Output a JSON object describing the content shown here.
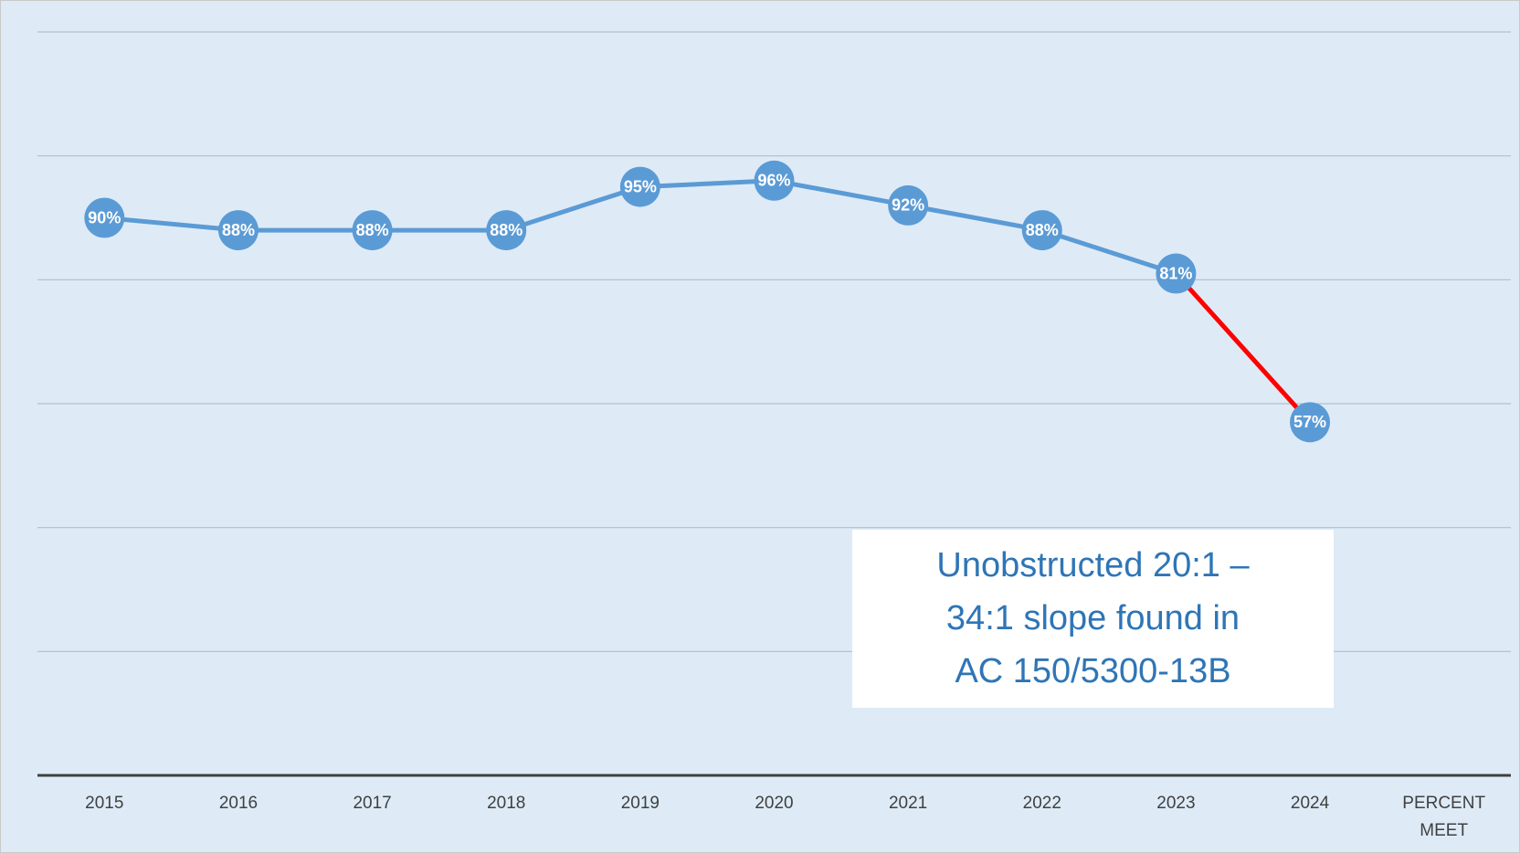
{
  "chart_data": {
    "type": "line",
    "categories": [
      "2015",
      "2016",
      "2017",
      "2018",
      "2019",
      "2020",
      "2021",
      "2022",
      "2023",
      "2024",
      "PERCENT MEET"
    ],
    "series": [
      {
        "color": "#5b9bd5",
        "highlight_color": "#ff0000",
        "values": [
          90,
          88,
          88,
          88,
          95,
          96,
          92,
          88,
          81,
          57,
          null
        ],
        "value_labels": [
          "90%",
          "88%",
          "88%",
          "88%",
          "95%",
          "96%",
          "92%",
          "88%",
          "81%",
          "57%",
          null
        ]
      }
    ],
    "ylim": [
      0,
      120
    ],
    "yticks": [
      0,
      20,
      40,
      60,
      80,
      100,
      120
    ],
    "grid": true,
    "annotation": [
      "Unobstructed 20:1 –",
      "34:1 slope found in",
      "AC 150/5300-13B"
    ]
  }
}
